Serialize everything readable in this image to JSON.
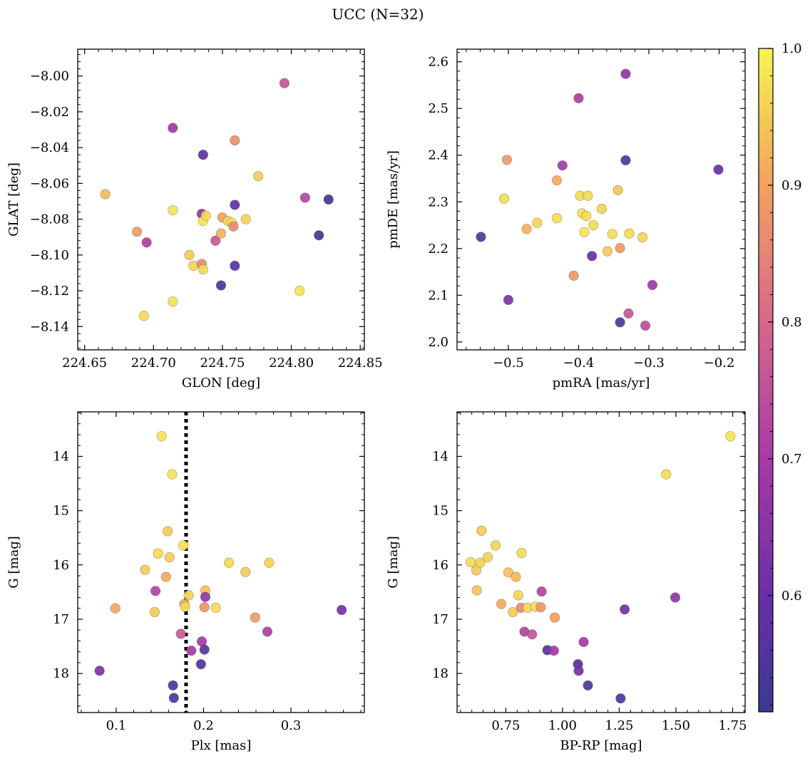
{
  "figure": {
    "suptitle": "UCC (N=32)",
    "colormap": "plasma",
    "colorbar": {
      "range": [
        0.515,
        1.0
      ],
      "ticks": [
        0.6,
        0.7,
        0.8,
        0.9,
        1.0
      ],
      "tick_labels": [
        "0.6",
        "0.7",
        "0.8",
        "0.9",
        "1.0"
      ]
    }
  },
  "chart_data": [
    {
      "type": "scatter",
      "xlabel": "GLON [deg]",
      "ylabel": "GLAT [deg]",
      "xlim": [
        224.645,
        224.853
      ],
      "ylim": [
        -8.153,
        -7.985
      ],
      "invert_y": false,
      "x_ticks": [
        224.65,
        224.7,
        224.75,
        224.8,
        224.85
      ],
      "x_tick_labels": [
        "224.65",
        "224.70",
        "224.75",
        "224.80",
        "224.85"
      ],
      "y_ticks": [
        -8.14,
        -8.12,
        -8.1,
        -8.08,
        -8.06,
        -8.04,
        -8.02,
        -8.0
      ],
      "y_tick_labels": [
        "−8.14",
        "−8.12",
        "−8.10",
        "−8.08",
        "−8.06",
        "−8.04",
        "−8.02",
        "−8.00"
      ],
      "points": [
        {
          "x": 224.665,
          "y": -8.066,
          "c": 0.93
        },
        {
          "x": 224.688,
          "y": -8.087,
          "c": 0.89
        },
        {
          "x": 224.693,
          "y": -8.134,
          "c": 0.97
        },
        {
          "x": 224.695,
          "y": -8.093,
          "c": 0.71
        },
        {
          "x": 224.714,
          "y": -8.029,
          "c": 0.69
        },
        {
          "x": 224.714,
          "y": -8.075,
          "c": 0.98
        },
        {
          "x": 224.714,
          "y": -8.126,
          "c": 0.98
        },
        {
          "x": 224.726,
          "y": -8.1,
          "c": 0.95
        },
        {
          "x": 224.729,
          "y": -8.106,
          "c": 0.96
        },
        {
          "x": 224.735,
          "y": -8.105,
          "c": 0.86
        },
        {
          "x": 224.735,
          "y": -8.077,
          "c": 0.66
        },
        {
          "x": 224.736,
          "y": -8.044,
          "c": 0.58
        },
        {
          "x": 224.736,
          "y": -8.108,
          "c": 0.97
        },
        {
          "x": 224.736,
          "y": -8.081,
          "c": 0.98
        },
        {
          "x": 224.738,
          "y": -8.078,
          "c": 0.97
        },
        {
          "x": 224.745,
          "y": -8.092,
          "c": 0.77
        },
        {
          "x": 224.749,
          "y": -8.117,
          "c": 0.55
        },
        {
          "x": 224.749,
          "y": -8.088,
          "c": 0.92
        },
        {
          "x": 224.75,
          "y": -8.079,
          "c": 0.9
        },
        {
          "x": 224.754,
          "y": -8.081,
          "c": 0.96
        },
        {
          "x": 224.757,
          "y": -8.082,
          "c": 0.98
        },
        {
          "x": 224.758,
          "y": -8.084,
          "c": 0.86
        },
        {
          "x": 224.759,
          "y": -8.036,
          "c": 0.87
        },
        {
          "x": 224.759,
          "y": -8.072,
          "c": 0.59
        },
        {
          "x": 224.759,
          "y": -8.106,
          "c": 0.57
        },
        {
          "x": 224.767,
          "y": -8.08,
          "c": 0.96
        },
        {
          "x": 224.776,
          "y": -8.056,
          "c": 0.95
        },
        {
          "x": 224.795,
          "y": -8.004,
          "c": 0.76
        },
        {
          "x": 224.806,
          "y": -8.12,
          "c": 0.98
        },
        {
          "x": 224.81,
          "y": -8.068,
          "c": 0.73
        },
        {
          "x": 224.82,
          "y": -8.089,
          "c": 0.52
        },
        {
          "x": 224.827,
          "y": -8.069,
          "c": 0.52
        }
      ]
    },
    {
      "type": "scatter",
      "xlabel": "pmRA [mas/yr]",
      "ylabel": "pmDE [mas/yr]",
      "xlim": [
        -0.573,
        -0.163
      ],
      "ylim": [
        1.983,
        2.627
      ],
      "invert_y": false,
      "x_ticks": [
        -0.5,
        -0.4,
        -0.3,
        -0.2
      ],
      "x_tick_labels": [
        "−0.5",
        "−0.4",
        "−0.3",
        "−0.2"
      ],
      "y_ticks": [
        2.0,
        2.1,
        2.2,
        2.3,
        2.4,
        2.5,
        2.6
      ],
      "y_tick_labels": [
        "2.0",
        "2.1",
        "2.2",
        "2.3",
        "2.4",
        "2.5",
        "2.6"
      ],
      "points": [
        {
          "x": -0.539,
          "y": 2.225,
          "c": 0.55
        },
        {
          "x": -0.506,
          "y": 2.307,
          "c": 0.97
        },
        {
          "x": -0.502,
          "y": 2.39,
          "c": 0.89
        },
        {
          "x": -0.5,
          "y": 2.09,
          "c": 0.63
        },
        {
          "x": -0.474,
          "y": 2.242,
          "c": 0.92
        },
        {
          "x": -0.459,
          "y": 2.255,
          "c": 0.96
        },
        {
          "x": -0.431,
          "y": 2.346,
          "c": 0.91
        },
        {
          "x": -0.431,
          "y": 2.265,
          "c": 0.97
        },
        {
          "x": -0.423,
          "y": 2.378,
          "c": 0.69
        },
        {
          "x": -0.407,
          "y": 2.142,
          "c": 0.88
        },
        {
          "x": -0.4,
          "y": 2.522,
          "c": 0.71
        },
        {
          "x": -0.398,
          "y": 2.313,
          "c": 0.97
        },
        {
          "x": -0.395,
          "y": 2.275,
          "c": 0.97
        },
        {
          "x": -0.392,
          "y": 2.235,
          "c": 0.98
        },
        {
          "x": -0.389,
          "y": 2.27,
          "c": 0.97
        },
        {
          "x": -0.387,
          "y": 2.313,
          "c": 0.97
        },
        {
          "x": -0.381,
          "y": 2.184,
          "c": 0.6
        },
        {
          "x": -0.379,
          "y": 2.25,
          "c": 0.97
        },
        {
          "x": -0.367,
          "y": 2.285,
          "c": 0.96
        },
        {
          "x": -0.359,
          "y": 2.194,
          "c": 0.95
        },
        {
          "x": -0.352,
          "y": 2.231,
          "c": 0.97
        },
        {
          "x": -0.344,
          "y": 2.325,
          "c": 0.94
        },
        {
          "x": -0.341,
          "y": 2.201,
          "c": 0.89
        },
        {
          "x": -0.341,
          "y": 2.042,
          "c": 0.55
        },
        {
          "x": -0.333,
          "y": 2.574,
          "c": 0.66
        },
        {
          "x": -0.333,
          "y": 2.389,
          "c": 0.55
        },
        {
          "x": -0.329,
          "y": 2.061,
          "c": 0.76
        },
        {
          "x": -0.328,
          "y": 2.232,
          "c": 0.97
        },
        {
          "x": -0.309,
          "y": 2.224,
          "c": 0.96
        },
        {
          "x": -0.305,
          "y": 2.035,
          "c": 0.74
        },
        {
          "x": -0.295,
          "y": 2.122,
          "c": 0.69
        },
        {
          "x": -0.201,
          "y": 2.369,
          "c": 0.6
        }
      ]
    },
    {
      "type": "scatter",
      "xlabel": "Plx [mas]",
      "ylabel": "G [mag]",
      "xlim": [
        0.056,
        0.384
      ],
      "ylim": [
        18.72,
        13.18
      ],
      "invert_y": true,
      "x_ticks": [
        0.1,
        0.2,
        0.3
      ],
      "x_tick_labels": [
        "0.1",
        "0.2",
        "0.3"
      ],
      "y_ticks": [
        14,
        15,
        16,
        17,
        18
      ],
      "y_tick_labels": [
        "14",
        "15",
        "16",
        "17",
        "18"
      ],
      "vline": {
        "x": 0.18,
        "style": "dotted",
        "color": "#000000"
      },
      "points": [
        {
          "x": 0.081,
          "y": 17.95,
          "c": 0.63
        },
        {
          "x": 0.099,
          "y": 16.8,
          "c": 0.91
        },
        {
          "x": 0.133,
          "y": 16.09,
          "c": 0.95
        },
        {
          "x": 0.144,
          "y": 16.87,
          "c": 0.95
        },
        {
          "x": 0.145,
          "y": 16.48,
          "c": 0.72
        },
        {
          "x": 0.148,
          "y": 15.79,
          "c": 0.97
        },
        {
          "x": 0.152,
          "y": 13.63,
          "c": 0.98
        },
        {
          "x": 0.157,
          "y": 16.22,
          "c": 0.91
        },
        {
          "x": 0.159,
          "y": 15.38,
          "c": 0.95
        },
        {
          "x": 0.161,
          "y": 15.86,
          "c": 0.95
        },
        {
          "x": 0.164,
          "y": 14.33,
          "c": 0.98
        },
        {
          "x": 0.165,
          "y": 18.22,
          "c": 0.55
        },
        {
          "x": 0.166,
          "y": 18.45,
          "c": 0.55
        },
        {
          "x": 0.174,
          "y": 17.27,
          "c": 0.77
        },
        {
          "x": 0.177,
          "y": 15.64,
          "c": 0.98
        },
        {
          "x": 0.178,
          "y": 16.72,
          "c": 0.91
        },
        {
          "x": 0.179,
          "y": 16.77,
          "c": 0.97
        },
        {
          "x": 0.183,
          "y": 16.56,
          "c": 0.96
        },
        {
          "x": 0.186,
          "y": 17.58,
          "c": 0.7
        },
        {
          "x": 0.197,
          "y": 17.83,
          "c": 0.56
        },
        {
          "x": 0.198,
          "y": 17.41,
          "c": 0.7
        },
        {
          "x": 0.201,
          "y": 17.56,
          "c": 0.57
        },
        {
          "x": 0.201,
          "y": 16.78,
          "c": 0.88
        },
        {
          "x": 0.202,
          "y": 16.47,
          "c": 0.94
        },
        {
          "x": 0.202,
          "y": 16.59,
          "c": 0.66
        },
        {
          "x": 0.214,
          "y": 16.79,
          "c": 0.97
        },
        {
          "x": 0.229,
          "y": 15.96,
          "c": 0.97
        },
        {
          "x": 0.248,
          "y": 16.13,
          "c": 0.95
        },
        {
          "x": 0.259,
          "y": 16.97,
          "c": 0.89
        },
        {
          "x": 0.273,
          "y": 17.23,
          "c": 0.71
        },
        {
          "x": 0.275,
          "y": 15.96,
          "c": 0.96
        },
        {
          "x": 0.358,
          "y": 16.83,
          "c": 0.62
        }
      ]
    },
    {
      "type": "scatter",
      "xlabel": "BP-RP [mag]",
      "ylabel": "G [mag]",
      "xlim": [
        0.535,
        1.805
      ],
      "ylim": [
        18.72,
        13.18
      ],
      "invert_y": true,
      "x_ticks": [
        0.75,
        1.0,
        1.25,
        1.5,
        1.75
      ],
      "x_tick_labels": [
        "0.75",
        "1.00",
        "1.25",
        "1.50",
        "1.75"
      ],
      "y_ticks": [
        14,
        15,
        16,
        17,
        18
      ],
      "y_tick_labels": [
        "14",
        "15",
        "16",
        "17",
        "18"
      ],
      "points": [
        {
          "x": 0.595,
          "y": 15.95,
          "c": 0.97
        },
        {
          "x": 0.62,
          "y": 16.1,
          "c": 0.95
        },
        {
          "x": 0.622,
          "y": 16.47,
          "c": 0.94
        },
        {
          "x": 0.637,
          "y": 15.96,
          "c": 0.96
        },
        {
          "x": 0.643,
          "y": 15.37,
          "c": 0.95
        },
        {
          "x": 0.67,
          "y": 15.86,
          "c": 0.96
        },
        {
          "x": 0.705,
          "y": 15.64,
          "c": 0.96
        },
        {
          "x": 0.73,
          "y": 16.72,
          "c": 0.91
        },
        {
          "x": 0.761,
          "y": 16.14,
          "c": 0.94
        },
        {
          "x": 0.781,
          "y": 16.87,
          "c": 0.95
        },
        {
          "x": 0.794,
          "y": 16.22,
          "c": 0.93
        },
        {
          "x": 0.805,
          "y": 16.56,
          "c": 0.96
        },
        {
          "x": 0.817,
          "y": 16.79,
          "c": 0.86
        },
        {
          "x": 0.82,
          "y": 15.78,
          "c": 0.97
        },
        {
          "x": 0.832,
          "y": 17.23,
          "c": 0.72
        },
        {
          "x": 0.846,
          "y": 16.79,
          "c": 0.97
        },
        {
          "x": 0.866,
          "y": 17.28,
          "c": 0.76
        },
        {
          "x": 0.88,
          "y": 16.77,
          "c": 0.97
        },
        {
          "x": 0.904,
          "y": 16.78,
          "c": 0.88
        },
        {
          "x": 0.908,
          "y": 16.49,
          "c": 0.72
        },
        {
          "x": 0.933,
          "y": 17.57,
          "c": 0.56
        },
        {
          "x": 0.962,
          "y": 17.58,
          "c": 0.7
        },
        {
          "x": 0.966,
          "y": 16.97,
          "c": 0.9
        },
        {
          "x": 1.068,
          "y": 17.83,
          "c": 0.56
        },
        {
          "x": 1.071,
          "y": 17.95,
          "c": 0.62
        },
        {
          "x": 1.093,
          "y": 17.42,
          "c": 0.7
        },
        {
          "x": 1.112,
          "y": 18.22,
          "c": 0.55
        },
        {
          "x": 1.256,
          "y": 18.46,
          "c": 0.55
        },
        {
          "x": 1.274,
          "y": 16.82,
          "c": 0.62
        },
        {
          "x": 1.457,
          "y": 14.33,
          "c": 0.97
        },
        {
          "x": 1.497,
          "y": 16.6,
          "c": 0.66
        },
        {
          "x": 1.74,
          "y": 13.63,
          "c": 0.98
        }
      ]
    }
  ]
}
